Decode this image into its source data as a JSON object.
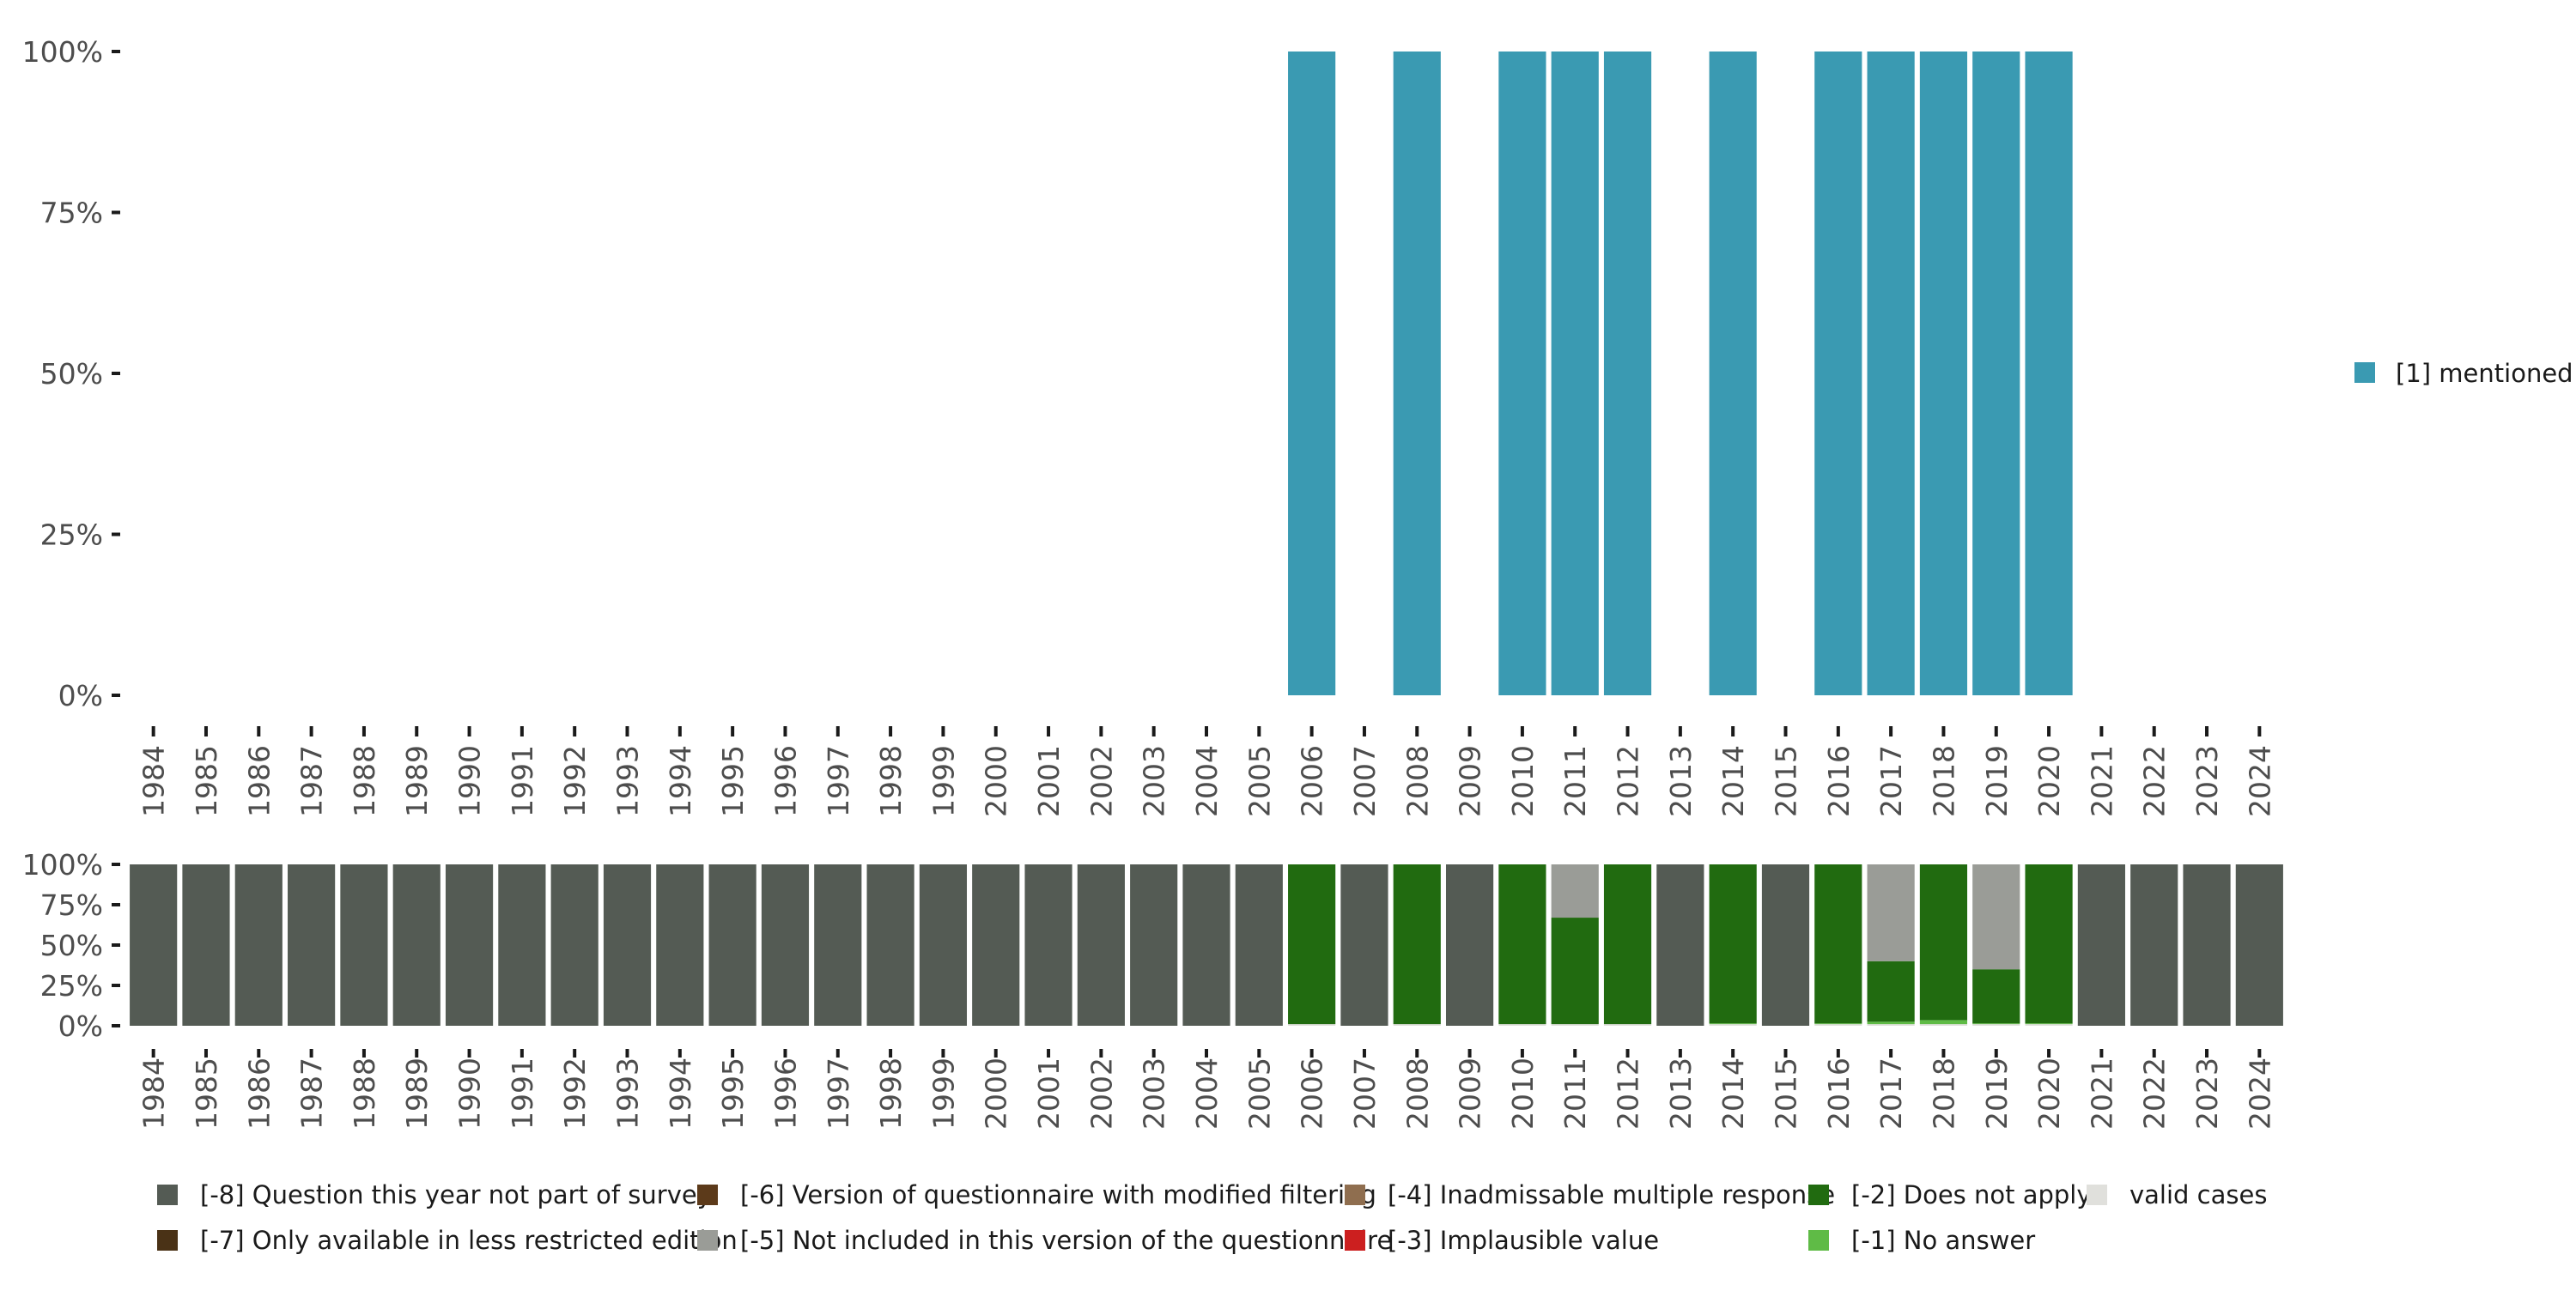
{
  "chart_data": [
    {
      "type": "bar",
      "title": "",
      "xlabel": "",
      "ylabel": "",
      "ylim": [
        0,
        100
      ],
      "y_ticks": [
        "100%",
        "75%",
        "50%",
        "25%",
        "0%"
      ],
      "categories": [
        "1984",
        "1985",
        "1986",
        "1987",
        "1988",
        "1989",
        "1990",
        "1991",
        "1992",
        "1993",
        "1994",
        "1995",
        "1996",
        "1997",
        "1998",
        "1999",
        "2000",
        "2001",
        "2002",
        "2003",
        "2004",
        "2005",
        "2006",
        "2007",
        "2008",
        "2009",
        "2010",
        "2011",
        "2012",
        "2013",
        "2014",
        "2015",
        "2016",
        "2017",
        "2018",
        "2019",
        "2020",
        "2021",
        "2022",
        "2023",
        "2024"
      ],
      "series": [
        {
          "name": "[1] mentioned",
          "color": "#3a9ab2",
          "values": [
            0,
            0,
            0,
            0,
            0,
            0,
            0,
            0,
            0,
            0,
            0,
            0,
            0,
            0,
            0,
            0,
            0,
            0,
            0,
            0,
            0,
            0,
            100,
            0,
            100,
            0,
            100,
            100,
            100,
            0,
            100,
            0,
            100,
            100,
            100,
            100,
            100,
            0,
            0,
            0,
            0
          ]
        }
      ],
      "legend": {
        "position": "right"
      },
      "grid": false
    },
    {
      "type": "bar",
      "stacked": true,
      "title": "",
      "xlabel": "",
      "ylabel": "",
      "ylim": [
        0,
        100
      ],
      "y_ticks": [
        "100%",
        "75%",
        "50%",
        "25%",
        "0%"
      ],
      "categories": [
        "1984",
        "1985",
        "1986",
        "1987",
        "1988",
        "1989",
        "1990",
        "1991",
        "1992",
        "1993",
        "1994",
        "1995",
        "1996",
        "1997",
        "1998",
        "1999",
        "2000",
        "2001",
        "2002",
        "2003",
        "2004",
        "2005",
        "2006",
        "2007",
        "2008",
        "2009",
        "2010",
        "2011",
        "2012",
        "2013",
        "2014",
        "2015",
        "2016",
        "2017",
        "2018",
        "2019",
        "2020",
        "2021",
        "2022",
        "2023",
        "2024"
      ],
      "series": [
        {
          "name": "valid cases",
          "color": "#e0e0dc",
          "values": [
            0,
            0,
            0,
            0,
            0,
            0,
            0,
            0,
            0,
            0,
            0,
            0,
            0,
            0,
            0,
            0,
            0,
            0,
            0,
            0,
            0,
            0,
            1,
            0,
            1,
            0,
            1,
            1,
            1,
            0,
            1,
            0,
            1,
            1,
            1,
            1,
            1,
            0,
            0,
            0,
            0
          ]
        },
        {
          "name": "[-1] No answer",
          "color": "#5fbb46",
          "values": [
            0,
            0,
            0,
            0,
            0,
            0,
            0,
            0,
            0,
            0,
            0,
            0,
            0,
            0,
            0,
            0,
            0,
            0,
            0,
            0,
            0,
            0,
            0,
            0,
            0,
            0,
            0,
            0,
            0,
            0,
            0.5,
            0,
            0.5,
            1.5,
            2.5,
            0.5,
            0.5,
            0,
            0,
            0,
            0
          ]
        },
        {
          "name": "[-2] Does not apply",
          "color": "#216b10",
          "values": [
            0,
            0,
            0,
            0,
            0,
            0,
            0,
            0,
            0,
            0,
            0,
            0,
            0,
            0,
            0,
            0,
            0,
            0,
            0,
            0,
            0,
            0,
            99,
            0,
            99,
            0,
            99,
            66,
            99,
            0,
            98.5,
            0,
            98.5,
            37.5,
            96.5,
            33.5,
            98.5,
            0,
            0,
            0,
            0
          ]
        },
        {
          "name": "[-5] Not included in this version of the questionnaire",
          "color": "#9a9c97",
          "values": [
            0,
            0,
            0,
            0,
            0,
            0,
            0,
            0,
            0,
            0,
            0,
            0,
            0,
            0,
            0,
            0,
            0,
            0,
            0,
            0,
            0,
            0,
            0,
            0,
            0,
            0,
            0,
            33,
            0,
            0,
            0,
            0,
            0,
            60,
            0,
            65,
            0,
            0,
            0,
            0,
            0
          ]
        },
        {
          "name": "[-8] Question this year not part of survey",
          "color": "#545b54",
          "values": [
            100,
            100,
            100,
            100,
            100,
            100,
            100,
            100,
            100,
            100,
            100,
            100,
            100,
            100,
            100,
            100,
            100,
            100,
            100,
            100,
            100,
            100,
            0,
            100,
            0,
            100,
            0,
            0,
            0,
            100,
            0,
            100,
            0,
            0,
            0,
            0,
            0,
            100,
            100,
            100,
            100
          ]
        }
      ],
      "legend_entries": [
        {
          "label": "[-8] Question this year not part of survey",
          "color": "#545b54"
        },
        {
          "label": "[-7] Only available in less restricted edition",
          "color": "#4a3216"
        },
        {
          "label": "[-6] Version of questionnaire with modified filtering",
          "color": "#5c3a1a"
        },
        {
          "label": "[-5] Not included in this version of the questionnaire",
          "color": "#9a9c97"
        },
        {
          "label": "[-4] Inadmissable multiple response",
          "color": "#8f6e4f"
        },
        {
          "label": "[-3] Implausible value",
          "color": "#cc1f1f"
        },
        {
          "label": "[-2] Does not apply",
          "color": "#216b10"
        },
        {
          "label": "[-1] No answer",
          "color": "#5fbb46"
        },
        {
          "label": "valid cases",
          "color": "#e0e0dc"
        }
      ],
      "legend": {
        "position": "bottom"
      },
      "grid": false
    }
  ]
}
